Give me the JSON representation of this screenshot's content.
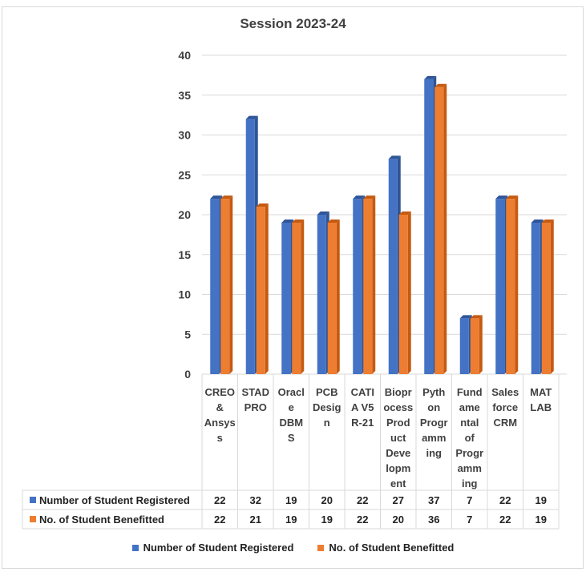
{
  "chart_data": {
    "type": "bar",
    "title": "Session 2023-24",
    "categories": [
      [
        "CREO",
        "&",
        "Ansys",
        "s"
      ],
      [
        "STAD",
        "PRO"
      ],
      [
        "Oracl",
        "e",
        "DBM",
        "S"
      ],
      [
        "PCB",
        "Desig",
        "n"
      ],
      [
        "CATI",
        "A V5",
        "R-21"
      ],
      [
        "Biopr",
        "ocess",
        "Prod",
        "uct",
        "Deve",
        "lopm",
        "ent"
      ],
      [
        "Pyth",
        "on",
        "Progr",
        "amm",
        "ing"
      ],
      [
        "Fund",
        "ame",
        "ntal",
        "of",
        "Progr",
        "amm",
        "ing"
      ],
      [
        "Sales",
        "force",
        "CRM"
      ],
      [
        "MAT",
        "LAB"
      ]
    ],
    "series": [
      {
        "name": "Number of Student Registered",
        "color": "#4472c4",
        "dark": "#2f5597",
        "values": [
          22,
          32,
          19,
          20,
          22,
          27,
          37,
          7,
          22,
          19
        ]
      },
      {
        "name": "No. of Student Benefitted",
        "color": "#ed7d31",
        "dark": "#c55a11",
        "values": [
          22,
          21,
          19,
          19,
          22,
          20,
          36,
          7,
          22,
          19
        ]
      }
    ],
    "ylim": [
      0,
      40
    ],
    "yticks": [
      0,
      5,
      10,
      15,
      20,
      25,
      30,
      35,
      40
    ],
    "grid": true,
    "legend": "bottom"
  }
}
